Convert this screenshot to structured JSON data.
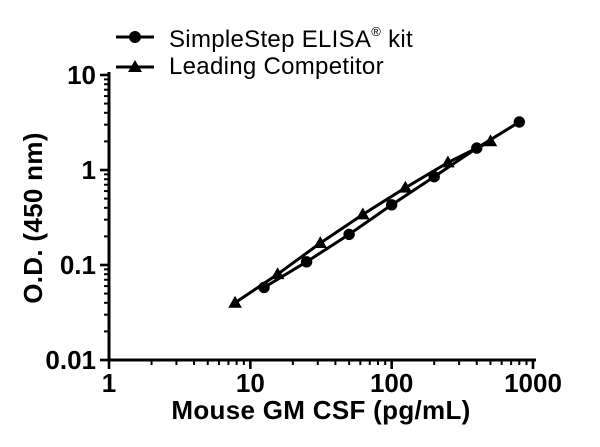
{
  "chart_data": {
    "type": "line",
    "title": "",
    "xlabel": "Mouse GM CSF (pg/mL)",
    "ylabel": "O.D. (450 nm)",
    "x_scale": "log",
    "y_scale": "log",
    "xlim": [
      1,
      1000
    ],
    "ylim": [
      0.01,
      10
    ],
    "x_ticks": [
      "1",
      "10",
      "100",
      "1000"
    ],
    "y_ticks": [
      "0.01",
      "0.1",
      "1",
      "10"
    ],
    "grid": false,
    "legend_position": "top-center",
    "axis_color": "#000000",
    "series": [
      {
        "name": "SimpleStep ELISA® kit",
        "marker": "circle",
        "color": "#000000",
        "x": [
          12.5,
          25,
          50,
          100,
          200,
          400,
          800
        ],
        "y": [
          0.058,
          0.108,
          0.21,
          0.43,
          0.85,
          1.7,
          3.2
        ]
      },
      {
        "name": "Leading Competitor",
        "marker": "triangle",
        "color": "#000000",
        "x": [
          7.8,
          15.6,
          31.25,
          62.5,
          125,
          250,
          500
        ],
        "y": [
          0.04,
          0.08,
          0.17,
          0.34,
          0.65,
          1.2,
          2.0
        ]
      }
    ]
  },
  "legend": {
    "items": [
      {
        "marker": "circle",
        "label_main": "SimpleStep ELISA",
        "label_sup": "®",
        "label_end": " kit"
      },
      {
        "marker": "triangle",
        "label_main": "Leading Competitor",
        "label_sup": "",
        "label_end": ""
      }
    ]
  }
}
